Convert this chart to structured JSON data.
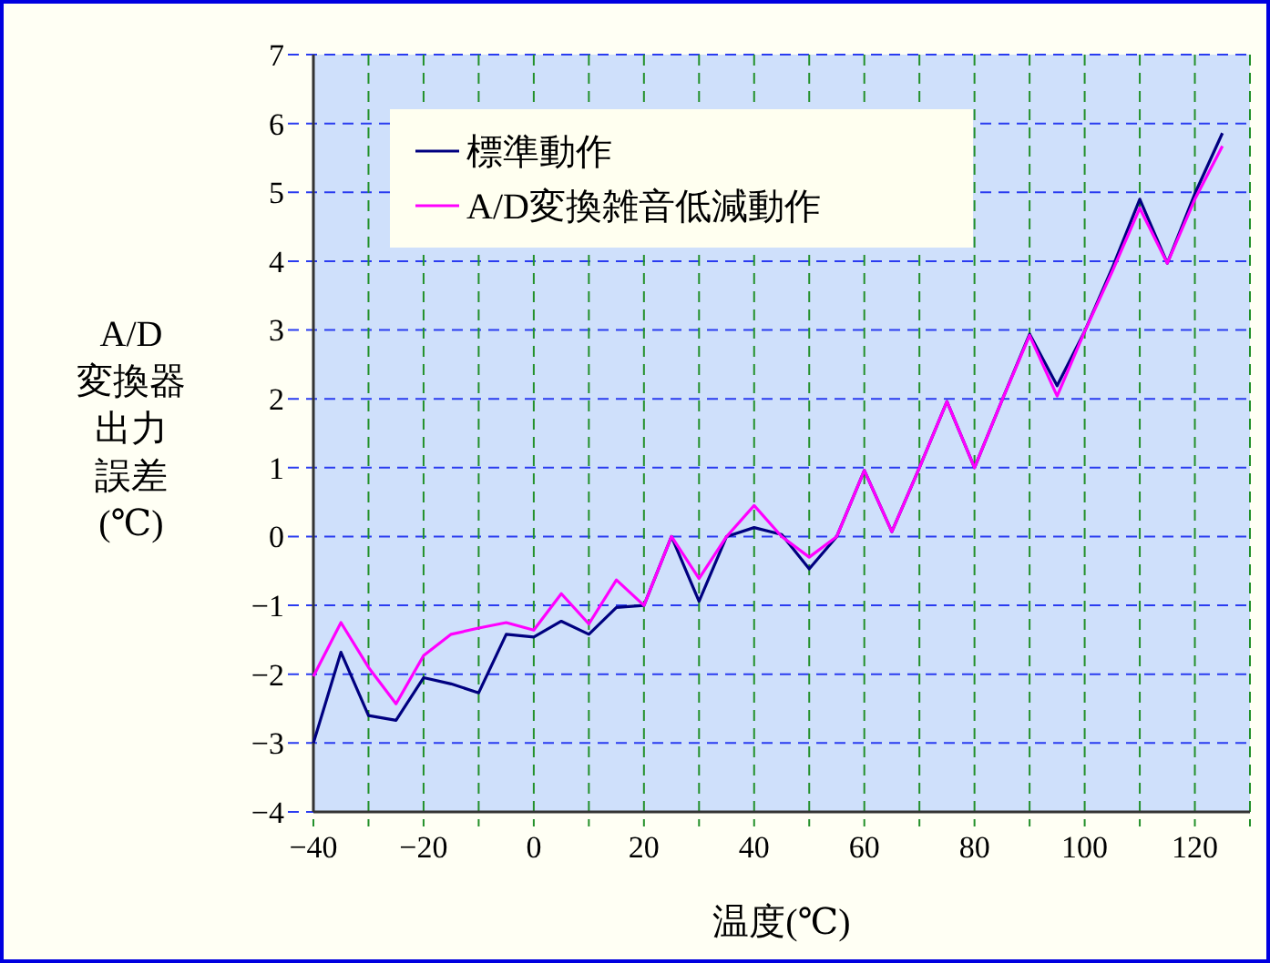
{
  "chart_data": {
    "type": "line",
    "xlabel": "温度(℃)",
    "ylabel": "A/D変換器出力誤差(℃)",
    "x": [
      -40,
      -35,
      -30,
      -25,
      -20,
      -15,
      -10,
      -5,
      0,
      5,
      10,
      15,
      20,
      25,
      30,
      35,
      40,
      45,
      50,
      55,
      60,
      65,
      70,
      75,
      80,
      85,
      90,
      95,
      100,
      105,
      110,
      115,
      120,
      125
    ],
    "series": [
      {
        "name": "標準動作",
        "color": "#000080",
        "values": [
          -3.0,
          -1.68,
          -2.6,
          -2.67,
          -2.05,
          -2.14,
          -2.27,
          -1.42,
          -1.46,
          -1.23,
          -1.42,
          -1.03,
          -1.0,
          0,
          -0.94,
          0,
          0.13,
          0.03,
          -0.47,
          0,
          0.96,
          0.07,
          1.0,
          1.96,
          1.0,
          1.98,
          2.94,
          2.19,
          2.98,
          3.9,
          4.9,
          3.97,
          4.98,
          5.86
        ]
      },
      {
        "name": "A/D変換雑音低減動作",
        "color": "#ff00ff",
        "values": [
          -2.03,
          -1.25,
          -1.9,
          -2.43,
          -1.73,
          -1.42,
          -1.33,
          -1.25,
          -1.36,
          -0.83,
          -1.27,
          -0.63,
          -1.0,
          0,
          -0.61,
          0,
          0.45,
          0,
          -0.3,
          0,
          0.96,
          0.07,
          1.0,
          1.96,
          1.0,
          1.98,
          2.92,
          2.04,
          2.98,
          3.85,
          4.77,
          3.97,
          4.9,
          5.67
        ]
      }
    ],
    "xlim": [
      -40,
      130
    ],
    "xticks": [
      -40,
      {
        "value": -30,
        "label": null
      },
      -20,
      {
        "value": -10,
        "label": null
      },
      0,
      {
        "value": 10,
        "label": null
      },
      20,
      {
        "value": 30,
        "label": null
      },
      40,
      {
        "value": 50,
        "label": null
      },
      60,
      {
        "value": 70,
        "label": null
      },
      80,
      {
        "value": 90,
        "label": null
      },
      100,
      {
        "value": 110,
        "label": null
      },
      120,
      {
        "value": 130,
        "label": null
      }
    ],
    "ylim": [
      -4,
      7
    ],
    "yticks": [
      -4,
      -3,
      -2,
      -1,
      0,
      1,
      2,
      3,
      4,
      5,
      6,
      7
    ],
    "grid": true,
    "legend": "top left",
    "line_style": "solid"
  }
}
